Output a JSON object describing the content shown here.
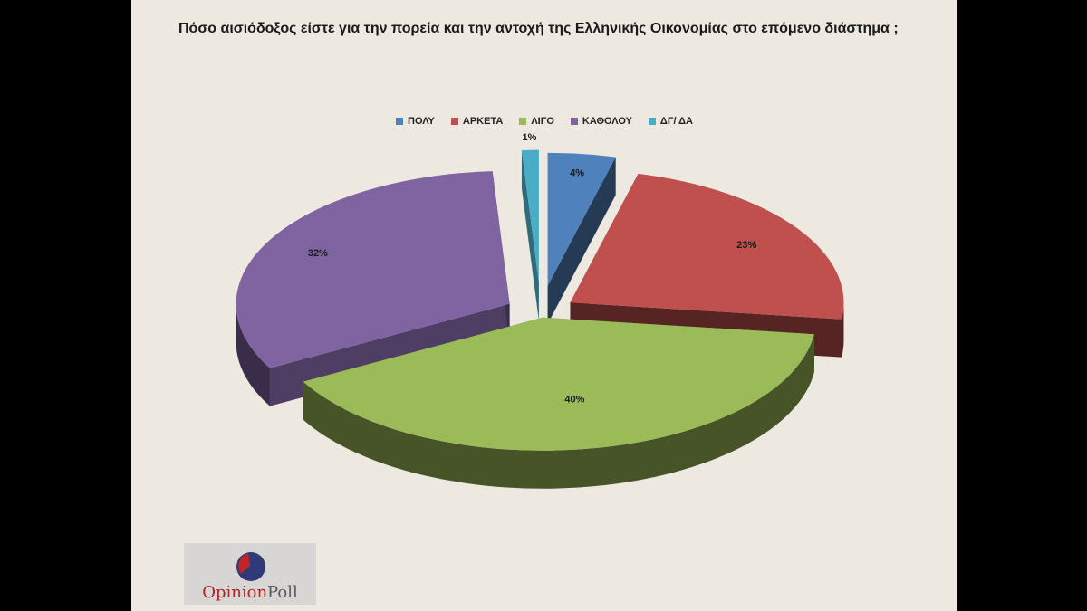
{
  "title": "Πόσο αισιόδοξος είστε για την πορεία και την αντοχή της Ελληνικής Οικονομίας στο επόμενο διάστημα ;",
  "chart_data": {
    "type": "pie",
    "style": "3d-exploded",
    "legend_position": "top-center",
    "categories": [
      "ΠΟΛΥ",
      "ΑΡΚΕΤΑ",
      "ΛΙΓΟ",
      "ΚΑΘΟΛΟΥ",
      "ΔΓ/ ΔΑ"
    ],
    "values": [
      4,
      23,
      40,
      32,
      1
    ],
    "labels": [
      "4%",
      "23%",
      "40%",
      "32%",
      "1%"
    ],
    "colors": [
      "#4f81bd",
      "#c0504d",
      "#9bbb59",
      "#8064a2",
      "#4bacc6"
    ]
  },
  "logo": {
    "word1": "Opinion",
    "word2": "Poll"
  }
}
